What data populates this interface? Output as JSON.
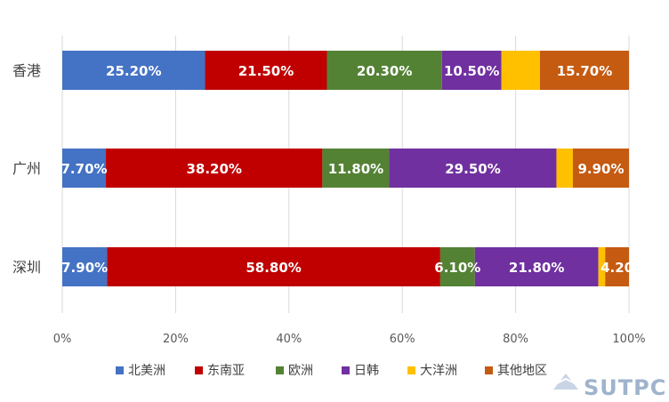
{
  "chart_data": {
    "type": "bar",
    "orientation": "horizontal",
    "stacked": "percent",
    "categories": [
      "香港",
      "广州",
      "深圳"
    ],
    "series": [
      {
        "name": "北美洲",
        "color": "#4472C4",
        "values": [
          25.2,
          7.7,
          7.9
        ],
        "labels": [
          "25.20%",
          "7.70%",
          "7.90%"
        ]
      },
      {
        "name": "东南亚",
        "color": "#C00000",
        "values": [
          21.5,
          38.2,
          58.8
        ],
        "labels": [
          "21.50%",
          "38.20%",
          "58.80%"
        ]
      },
      {
        "name": "欧洲",
        "color": "#548235",
        "values": [
          20.3,
          11.8,
          6.1
        ],
        "labels": [
          "20.30%",
          "11.80%",
          "6.10%"
        ]
      },
      {
        "name": "日韩",
        "color": "#7030A0",
        "values": [
          10.5,
          29.5,
          21.8
        ],
        "labels": [
          "10.50%",
          "29.50%",
          "21.80%"
        ]
      },
      {
        "name": "大洋洲",
        "color": "#FFC000",
        "values": [
          6.8,
          2.9,
          1.2
        ],
        "labels": [
          "",
          "",
          ""
        ]
      },
      {
        "name": "其他地区",
        "color": "#C55A11",
        "values": [
          15.7,
          9.9,
          4.2
        ],
        "labels": [
          "15.70%",
          "9.90%",
          "4.20"
        ]
      }
    ],
    "xlim": [
      0,
      100
    ],
    "x_ticks": [
      "0%",
      "20%",
      "40%",
      "60%",
      "80%",
      "100%"
    ],
    "grid": true,
    "legend": "bottom"
  },
  "watermark": {
    "text": "SUTPC"
  }
}
